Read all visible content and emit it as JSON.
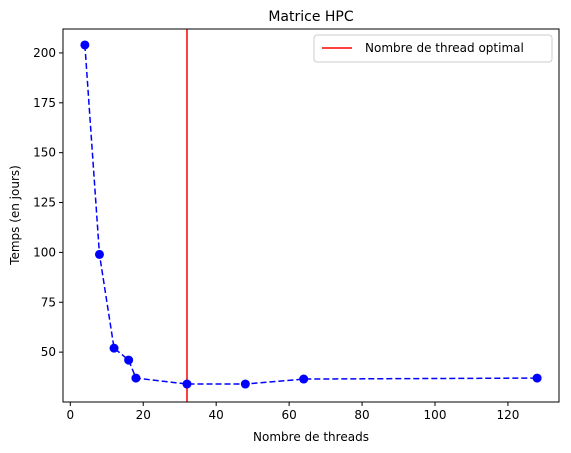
{
  "chart_data": {
    "type": "line",
    "title": "Matrice HPC",
    "xlabel": "Nombre de threads",
    "ylabel": "Temps (en jours)",
    "xlim": [
      -2,
      134
    ],
    "ylim": [
      25,
      212
    ],
    "x_ticks": [
      0,
      20,
      40,
      60,
      80,
      100,
      120
    ],
    "y_ticks": [
      50,
      75,
      100,
      125,
      150,
      175,
      200
    ],
    "grid": false,
    "legend_position": "top-right",
    "series": [
      {
        "style": "dashed line with circle markers",
        "color": "#0000ff",
        "x": [
          4,
          8,
          12,
          16,
          18,
          32,
          48,
          64,
          128
        ],
        "y": [
          204,
          99,
          52,
          46,
          37,
          34,
          34,
          36.5,
          37
        ]
      }
    ],
    "vline": {
      "name": "Nombre de thread optimal",
      "x": 32,
      "color": "#ff0000"
    }
  }
}
